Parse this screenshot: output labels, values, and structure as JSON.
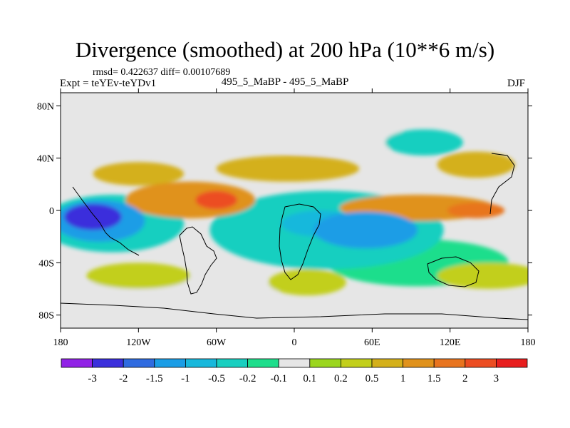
{
  "title": "Divergence (smoothed) at 200 hPa (10**6 m/s)",
  "stats": "rmsd= 0.422637 diff= 0.00107689",
  "experiment": "Expt = teYEv-teYDv1",
  "case": "495_5_MaBP - 495_5_MaBP",
  "season": "DJF",
  "map": {
    "lon_range": [
      -180,
      180
    ],
    "lat_range": [
      -90,
      90
    ],
    "lat_ticks": [
      {
        "v": 80,
        "label": "80N"
      },
      {
        "v": 40,
        "label": "40N"
      },
      {
        "v": 0,
        "label": "0"
      },
      {
        "v": -40,
        "label": "40S"
      },
      {
        "v": -80,
        "label": "80S"
      }
    ],
    "lon_ticks": [
      {
        "v": -180,
        "label": "180"
      },
      {
        "v": -120,
        "label": "120W"
      },
      {
        "v": -60,
        "label": "60W"
      },
      {
        "v": 0,
        "label": "0"
      },
      {
        "v": 60,
        "label": "60E"
      },
      {
        "v": 120,
        "label": "120E"
      },
      {
        "v": 180,
        "label": "180"
      }
    ],
    "background_color": "#e6e6e6"
  },
  "colorbar": {
    "colors": [
      "#9122e6",
      "#3b2fdc",
      "#2f6be0",
      "#1a9de6",
      "#18b8dc",
      "#19cfc0",
      "#1ede8c",
      "#e6e6e6",
      "#9bd61e",
      "#c2cf1b",
      "#d4b01a",
      "#e0921c",
      "#e8741f",
      "#ec4d22",
      "#e81e1e"
    ],
    "labels": [
      "-3",
      "-2",
      "-1.5",
      "-1",
      "-0.5",
      "-0.2",
      "-0.1",
      "0.1",
      "0.2",
      "0.5",
      "1",
      "1.5",
      "2",
      "3"
    ]
  },
  "field": [
    {
      "lon": -155,
      "lat": -5,
      "val": -3,
      "rx": 22,
      "ry": 10
    },
    {
      "lon": -150,
      "lat": -8,
      "val": -1.5,
      "rx": 35,
      "ry": 16
    },
    {
      "lon": -140,
      "lat": -10,
      "val": -0.5,
      "rx": 55,
      "ry": 22
    },
    {
      "lon": 25,
      "lat": -15,
      "val": -0.5,
      "rx": 90,
      "ry": 30
    },
    {
      "lon": 55,
      "lat": -15,
      "val": -1.5,
      "rx": 40,
      "ry": 14
    },
    {
      "lon": 20,
      "lat": -10,
      "val": -1,
      "rx": 30,
      "ry": 10
    },
    {
      "lon": -80,
      "lat": 8,
      "val": 1,
      "rx": 50,
      "ry": 14
    },
    {
      "lon": -60,
      "lat": 8,
      "val": 2,
      "rx": 16,
      "ry": 7
    },
    {
      "lon": -120,
      "lat": 28,
      "val": 0.5,
      "rx": 35,
      "ry": 9
    },
    {
      "lon": 95,
      "lat": 2,
      "val": 1,
      "rx": 60,
      "ry": 10
    },
    {
      "lon": 140,
      "lat": 0,
      "val": 1.5,
      "rx": 22,
      "ry": 6
    },
    {
      "lon": -5,
      "lat": 32,
      "val": 0.5,
      "rx": 55,
      "ry": 10
    },
    {
      "lon": 30,
      "lat": 55,
      "val": -0.1,
      "rx": 60,
      "ry": 12
    },
    {
      "lon": -70,
      "lat": 60,
      "val": -0.1,
      "rx": 70,
      "ry": 10
    },
    {
      "lon": 100,
      "lat": 52,
      "val": -0.5,
      "rx": 30,
      "ry": 10
    },
    {
      "lon": 95,
      "lat": -40,
      "val": -0.2,
      "rx": 70,
      "ry": 18
    },
    {
      "lon": -90,
      "lat": -60,
      "val": -0.1,
      "rx": 80,
      "ry": 10
    },
    {
      "lon": -120,
      "lat": -50,
      "val": 0.2,
      "rx": 40,
      "ry": 10
    },
    {
      "lon": 10,
      "lat": -55,
      "val": 0.2,
      "rx": 30,
      "ry": 10
    },
    {
      "lon": 150,
      "lat": -50,
      "val": 0.2,
      "rx": 40,
      "ry": 10
    },
    {
      "lon": 140,
      "lat": 35,
      "val": 0.5,
      "rx": 30,
      "ry": 10
    },
    {
      "lon": -35,
      "lat": -20,
      "val": -0.2,
      "rx": 25,
      "ry": 10
    }
  ]
}
